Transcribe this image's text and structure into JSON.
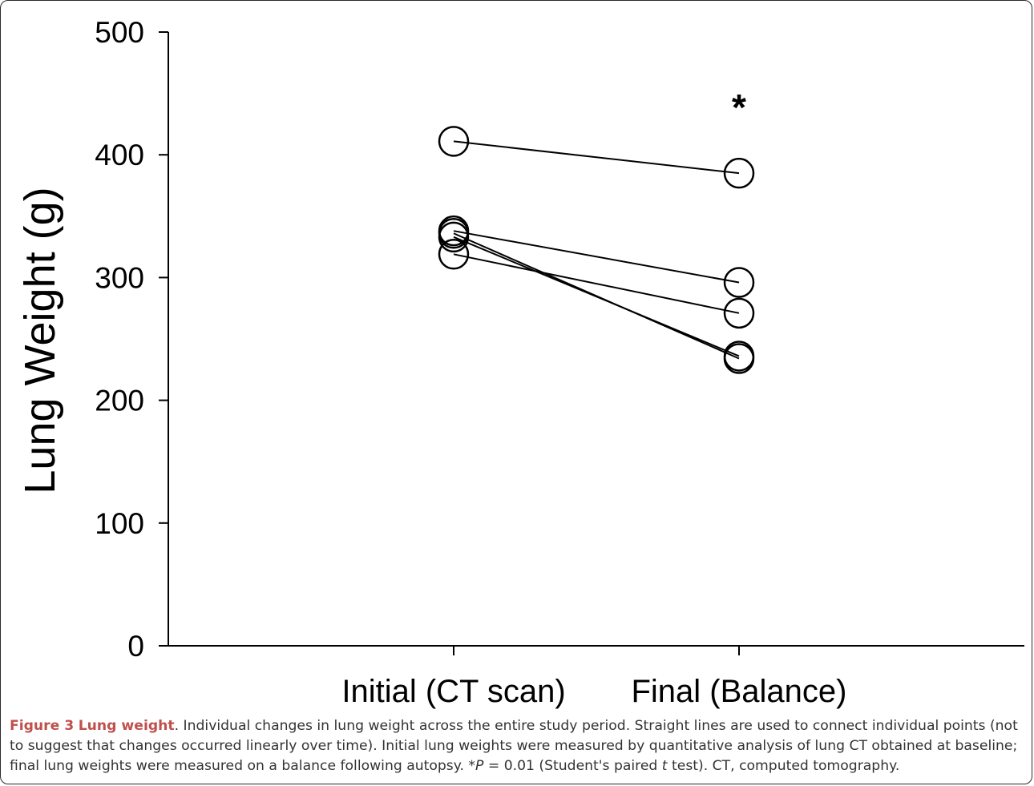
{
  "chart_data": {
    "type": "line",
    "categories": [
      "Initial (CT scan)",
      "Final (Balance)"
    ],
    "ylabel": "Lung Weight (g)",
    "xlabel": "",
    "ylim": [
      0,
      500
    ],
    "yticks": [
      0,
      100,
      200,
      300,
      400,
      500
    ],
    "grid": false,
    "annotation": "*",
    "annotation_category": "Final (Balance)",
    "series": [
      {
        "values": [
          411,
          385
        ]
      },
      {
        "values": [
          338,
          296
        ]
      },
      {
        "values": [
          319,
          271
        ]
      },
      {
        "values": [
          336,
          234
        ]
      },
      {
        "values": [
          333,
          236
        ]
      }
    ],
    "marker": "open-circle",
    "line_color": "#000000"
  },
  "caption": {
    "label": "Figure 3",
    "title": "Lung weight",
    "text_1": ". Individual changes in lung weight across the entire study period. Straight lines are used to connect individual points (not to suggest that changes occurred linearly over time). Initial lung weights were measured by quantitative analysis of lung CT obtained at baseline; final lung weights were measured on a balance following autopsy. *",
    "p_symbol": "P",
    "text_2": " = 0.01 (Student's paired ",
    "t_symbol": "t",
    "text_3": " test). CT, computed tomography."
  }
}
